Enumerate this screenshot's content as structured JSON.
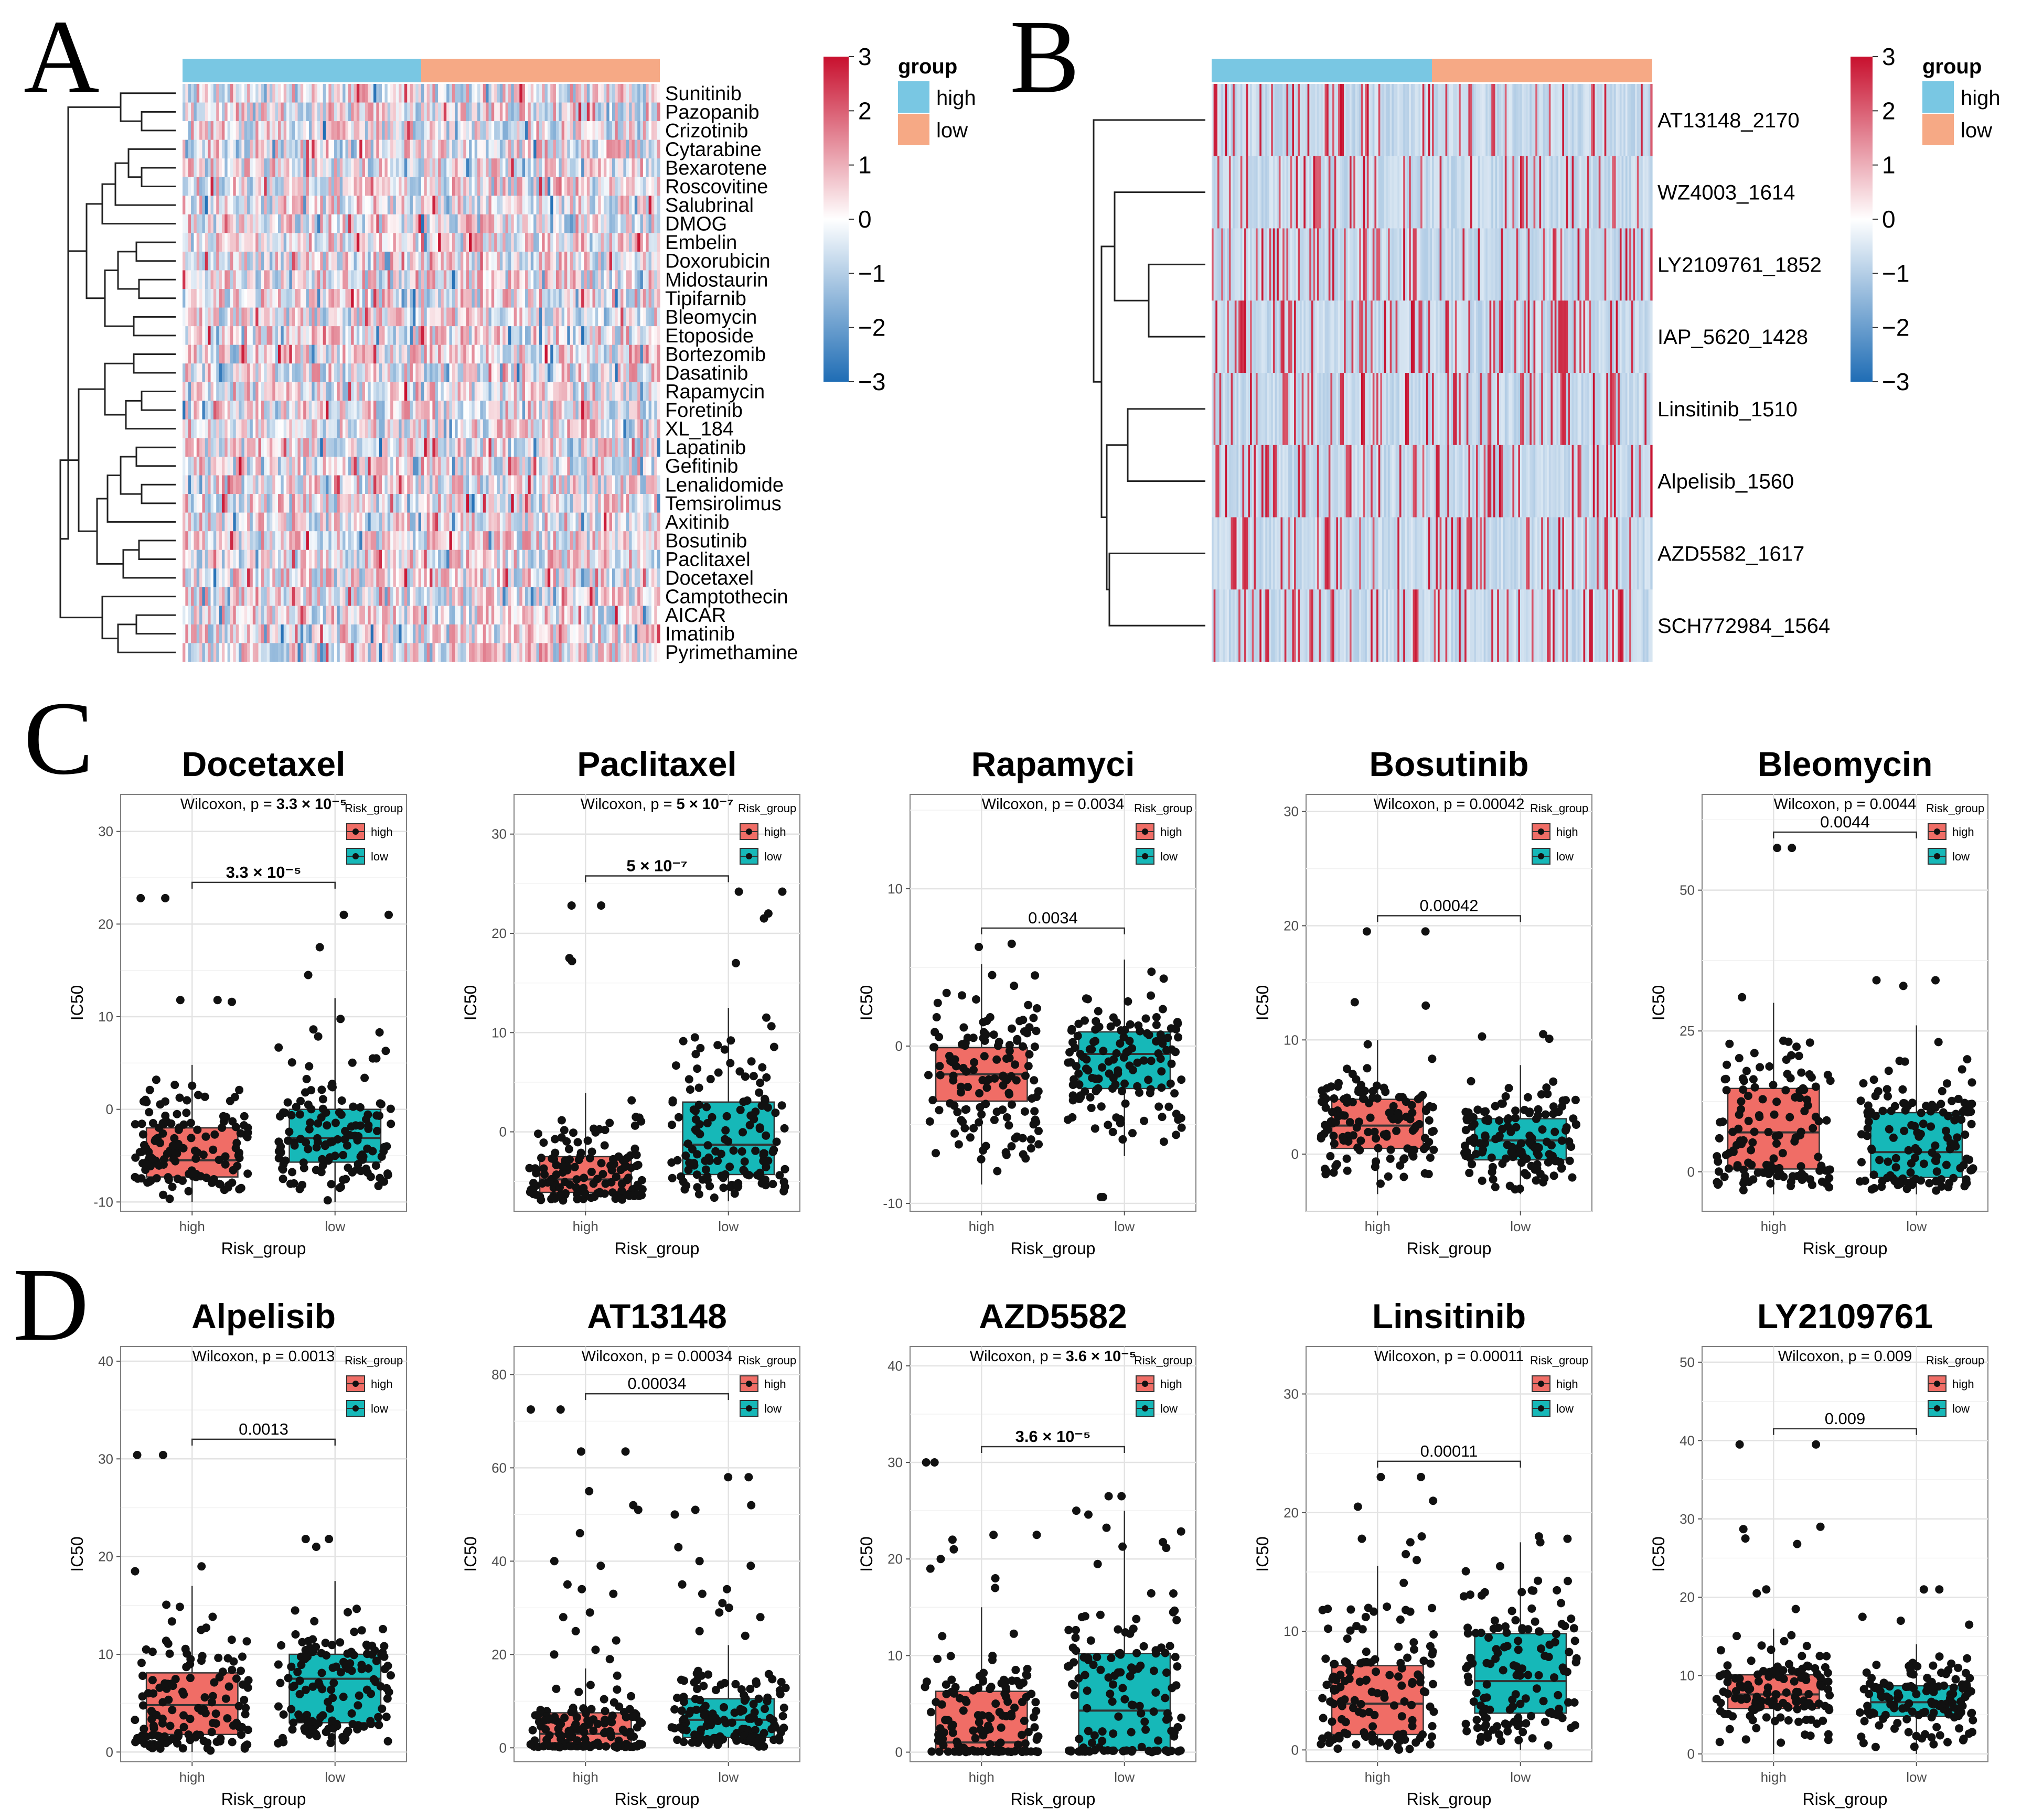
{
  "panels": {
    "A": {
      "letter": "A",
      "rows": [
        "Sunitinib",
        "Pazopanib",
        "Crizotinib",
        "Cytarabine",
        "Bexarotene",
        "Roscovitine",
        "Salubrinal",
        "DMOG",
        "Embelin",
        "Doxorubicin",
        "Midostaurin",
        "Tipifarnib",
        "Bleomycin",
        "Etoposide",
        "Bortezomib",
        "Dasatinib",
        "Rapamycin",
        "Foretinib",
        "XL_184",
        "Lapatinib",
        "Gefitinib",
        "Lenalidomide",
        "Temsirolimus",
        "Axitinib",
        "Bosutinib",
        "Paclitaxel",
        "Docetaxel",
        "Camptothecin",
        "AICAR",
        "Imatinib",
        "Pyrimethamine"
      ],
      "colorbar_ticks": [
        "3",
        "2",
        "1",
        "0",
        "−1",
        "−2",
        "−3"
      ],
      "legend_title": "group",
      "legend_items": [
        "high",
        "low"
      ]
    },
    "B": {
      "letter": "B",
      "rows": [
        "AT13148_2170",
        "WZ4003_1614",
        "LY2109761_1852",
        "IAP_5620_1428",
        "Linsitinib_1510",
        "Alpelisib_1560",
        "AZD5582_1617",
        "SCH772984_1564"
      ],
      "colorbar_ticks": [
        "3",
        "2",
        "1",
        "0",
        "−1",
        "−2",
        "−3"
      ],
      "legend_title": "group",
      "legend_items": [
        "high",
        "low"
      ]
    },
    "C": {
      "letter": "C"
    },
    "D": {
      "letter": "D"
    }
  },
  "colors": {
    "heat_high": "#c8102e",
    "heat_mid": "#ffffff",
    "heat_low": "#1f6db5",
    "group_high": "#79c7e3",
    "group_low": "#f6a985",
    "box_high": "#f06d66",
    "box_low": "#16b8b8"
  },
  "box_common": {
    "xlabel": "Risk_group",
    "ylabel": "IC50",
    "legend_title": "Risk_group",
    "legend_items": [
      "high",
      "low"
    ]
  },
  "chart_data": [
    {
      "type": "box",
      "title": "Docetaxel",
      "stat": "Wilcoxon, p = ",
      "stat_bold": "3.3 × 10⁻⁵",
      "bracket": "3.3 × 10⁻⁵",
      "bracket_bold": true,
      "categories": [
        "high",
        "low"
      ],
      "ylim": [
        -11,
        34
      ],
      "yticks": [
        -10,
        0,
        10,
        20,
        30
      ],
      "q": [
        [
          -7.3,
          -5.5,
          -2.0,
          -10,
          4.8
        ],
        [
          -5.7,
          -3.1,
          0,
          -10,
          12
        ]
      ],
      "outliers": [
        [
          22.8,
          22.8,
          11.8,
          11.8,
          11.6
        ],
        [
          21,
          21,
          17.5,
          14.5
        ]
      ]
    },
    {
      "type": "box",
      "title": "Paclitaxel",
      "stat": "Wilcoxon, p = ",
      "stat_bold": "5 × 10⁻⁷",
      "bracket": "5 × 10⁻⁷",
      "bracket_bold": true,
      "categories": [
        "high",
        "low"
      ],
      "ylim": [
        -8,
        34
      ],
      "yticks": [
        0,
        10,
        20,
        30
      ],
      "q": [
        [
          -6.1,
          -4.8,
          -2.5,
          -7,
          3.9
        ],
        [
          -4.3,
          -1.3,
          3.0,
          -7,
          12.5
        ]
      ],
      "outliers": [
        [
          22.8,
          22.8,
          17.5,
          17.2
        ],
        [
          24.2,
          24.2,
          22.0,
          21.5,
          17.0
        ]
      ]
    },
    {
      "type": "box",
      "title": "Rapamyci",
      "stat": "Wilcoxon, p = 0.0034",
      "stat_bold": "",
      "bracket": "0.0034",
      "bracket_bold": false,
      "categories": [
        "high",
        "low"
      ],
      "ylim": [
        -10.5,
        16
      ],
      "yticks": [
        -10,
        0,
        10
      ],
      "q": [
        [
          -3.5,
          -1.8,
          -0.1,
          -8.8,
          5.2
        ],
        [
          -2.7,
          -0.5,
          0.9,
          -7,
          5.5
        ]
      ],
      "outliers": [
        [
          6.5,
          6.3
        ],
        [
          -9.6,
          -9.6
        ]
      ]
    },
    {
      "type": "box",
      "title": "Bosutinib",
      "stat": "Wilcoxon, p = 0.00042",
      "stat_bold": "",
      "bracket": "0.00042",
      "bracket_bold": false,
      "categories": [
        "high",
        "low"
      ],
      "ylim": [
        -5,
        31.5
      ],
      "yticks": [
        0,
        10,
        20,
        30
      ],
      "q": [
        [
          0.5,
          2.5,
          4.8,
          -3.5,
          10
        ],
        [
          -0.5,
          1.2,
          3.1,
          -3.5,
          7.8
        ]
      ],
      "outliers": [
        [
          19.5,
          19.5,
          13.3,
          13.0
        ],
        [
          10.5,
          10.3,
          10.1
        ]
      ]
    },
    {
      "type": "box",
      "title": "Bleomycin",
      "stat": "Wilcoxon, p = 0.0044",
      "stat_bold": "",
      "bracket": "0.0044",
      "bracket_bold": false,
      "categories": [
        "high",
        "low"
      ],
      "ylim": [
        -7,
        67
      ],
      "yticks": [
        0,
        25,
        50
      ],
      "q": [
        [
          0.5,
          7.0,
          14.8,
          -4,
          30
        ],
        [
          -1.0,
          3.5,
          10.5,
          -4,
          26
        ]
      ],
      "outliers": [
        [
          57.5,
          57.5,
          31.0
        ],
        [
          34.0,
          34.0,
          33.0
        ]
      ]
    },
    {
      "type": "box",
      "title": "Alpelisib",
      "stat": "Wilcoxon, p = 0.0013",
      "stat_bold": "",
      "bracket": "0.0013",
      "bracket_bold": false,
      "categories": [
        "high",
        "low"
      ],
      "ylim": [
        -1,
        41.5
      ],
      "yticks": [
        0,
        10,
        20,
        30,
        40
      ],
      "q": [
        [
          1.8,
          4.8,
          8.1,
          0,
          17
        ],
        [
          3.0,
          7.5,
          10.0,
          0,
          17.5
        ]
      ],
      "outliers": [
        [
          30.4,
          30.4,
          19.0,
          18.5
        ],
        [
          21.8,
          21.8,
          21.0
        ]
      ]
    },
    {
      "type": "box",
      "title": "AT13148",
      "stat": "Wilcoxon, p = 0.00034",
      "stat_bold": "",
      "bracket": "0.00034",
      "bracket_bold": false,
      "categories": [
        "high",
        "low"
      ],
      "ylim": [
        -3,
        86
      ],
      "yticks": [
        0,
        20,
        40,
        60,
        80
      ],
      "q": [
        [
          0.4,
          3.0,
          7.5,
          0,
          17
        ],
        [
          2.2,
          6.0,
          10.5,
          0,
          22
        ]
      ],
      "outliers": [
        [
          72.5,
          72.5,
          63.5,
          63.5,
          55,
          52,
          51,
          46,
          40,
          39,
          35,
          34,
          33,
          29,
          28,
          25,
          23,
          21,
          20,
          19
        ],
        [
          58,
          58,
          52,
          51,
          50,
          43,
          40,
          39,
          35,
          34,
          33,
          31,
          30,
          29,
          28,
          25,
          24
        ]
      ]
    },
    {
      "type": "box",
      "title": "AZD5582",
      "stat": "Wilcoxon, p = ",
      "stat_bold": "3.6 × 10⁻⁵",
      "bracket": "3.6 × 10⁻⁵",
      "bracket_bold": true,
      "categories": [
        "high",
        "low"
      ],
      "ylim": [
        -1,
        42
      ],
      "yticks": [
        0,
        10,
        20,
        30,
        40
      ],
      "q": [
        [
          0.1,
          1.0,
          6.3,
          0,
          15
        ],
        [
          0.2,
          4.3,
          10.2,
          0,
          25
        ]
      ],
      "outliers": [
        [
          30.0,
          30.0,
          22.5,
          22.5,
          22,
          21,
          20,
          19,
          18,
          17
        ],
        [
          26.5,
          26.5,
          25,
          24.6
        ]
      ]
    },
    {
      "type": "box",
      "title": "Linsitinib",
      "stat": "Wilcoxon, p = 0.00011",
      "stat_bold": "",
      "bracket": "0.00011",
      "bracket_bold": false,
      "categories": [
        "high",
        "low"
      ],
      "ylim": [
        -1,
        34
      ],
      "yticks": [
        0,
        10,
        20,
        30
      ],
      "q": [
        [
          1.3,
          3.9,
          7.1,
          0,
          15.5
        ],
        [
          3.1,
          5.8,
          9.8,
          0,
          17.5
        ]
      ],
      "outliers": [
        [
          23,
          23,
          21,
          20.5,
          18,
          17.8,
          17.5,
          16.5,
          16
        ],
        [
          18,
          17.8,
          17.5
        ]
      ]
    },
    {
      "type": "box",
      "title": "LY2109761",
      "stat": "Wilcoxon, p = 0.009",
      "stat_bold": "",
      "bracket": "0.009",
      "bracket_bold": false,
      "categories": [
        "high",
        "low"
      ],
      "ylim": [
        -1,
        52
      ],
      "yticks": [
        0,
        10,
        20,
        30,
        40,
        50
      ],
      "q": [
        [
          5.8,
          7.6,
          10.1,
          0,
          16
        ],
        [
          4.8,
          6.6,
          8.7,
          0,
          14
        ]
      ],
      "outliers": [
        [
          39.5,
          39.5,
          29,
          28.7,
          27.5,
          26.8,
          21,
          20.5,
          18.5
        ],
        [
          21,
          21,
          17.5,
          17.0,
          16.5
        ]
      ]
    }
  ]
}
